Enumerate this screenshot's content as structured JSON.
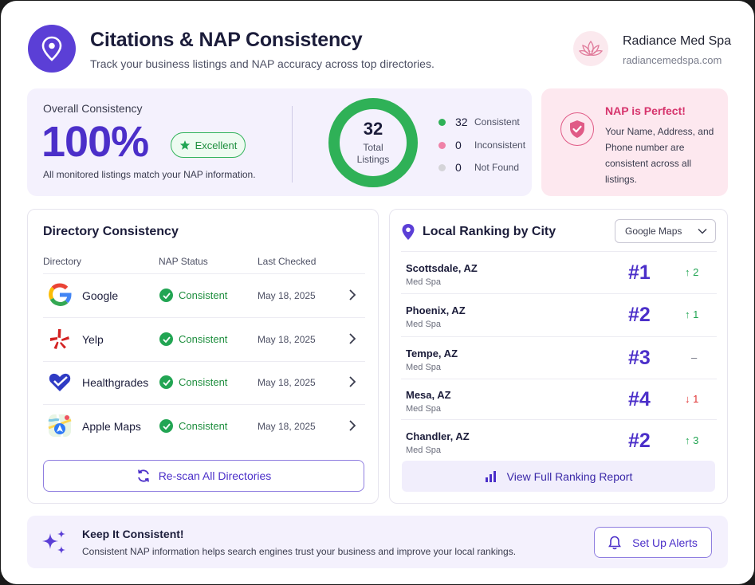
{
  "header": {
    "title": "Citations & NAP Consistency",
    "subtitle": "Track your business listings and NAP accuracy across top directories.",
    "icon": "location-pin-icon"
  },
  "business": {
    "name": "Radiance Med Spa",
    "url": "radiancemedspa.com",
    "logo_icon": "lotus-icon"
  },
  "overall": {
    "label": "Overall Consistency",
    "percent": "100%",
    "badge": "Excellent",
    "note": "All monitored listings match your NAP information.",
    "total": "32",
    "total_label_1": "Total",
    "total_label_2": "Listings",
    "legend": [
      {
        "count": "32",
        "label": "Consistent",
        "color": "#2fb157"
      },
      {
        "count": "0",
        "label": "Inconsistent",
        "color": "#ef82a8"
      },
      {
        "count": "0",
        "label": "Not Found",
        "color": "#d4d4d8"
      }
    ]
  },
  "nap_status": {
    "title": "NAP is Perfect!",
    "text": "Your Name, Address, and Phone number are consistent across all listings.",
    "icon": "shield-check-icon"
  },
  "directory": {
    "title": "Directory Consistency",
    "columns": [
      "Directory",
      "NAP Status",
      "Last Checked"
    ],
    "rows": [
      {
        "name": "Google",
        "status": "Consistent",
        "date": "May 18, 2025",
        "icon": "google-logo-icon"
      },
      {
        "name": "Yelp",
        "status": "Consistent",
        "date": "May 18, 2025",
        "icon": "yelp-logo-icon"
      },
      {
        "name": "Healthgrades",
        "status": "Consistent",
        "date": "May 18, 2025",
        "icon": "healthgrades-logo-icon"
      },
      {
        "name": "Apple Maps",
        "status": "Consistent",
        "date": "May 18, 2025",
        "icon": "apple-maps-logo-icon"
      }
    ],
    "rescan_label": "Re-scan All Directories"
  },
  "ranking": {
    "title": "Local Ranking by City",
    "source": "Google Maps",
    "rows": [
      {
        "city": "Scottsdale, AZ",
        "category": "Med Spa",
        "rank": "#1",
        "change": "↑ 2",
        "trend": "up"
      },
      {
        "city": "Phoenix, AZ",
        "category": "Med Spa",
        "rank": "#2",
        "change": "↑ 1",
        "trend": "up"
      },
      {
        "city": "Tempe, AZ",
        "category": "Med Spa",
        "rank": "#3",
        "change": "–",
        "trend": "flat"
      },
      {
        "city": "Mesa, AZ",
        "category": "Med Spa",
        "rank": "#4",
        "change": "↓ 1",
        "trend": "down"
      },
      {
        "city": "Chandler, AZ",
        "category": "Med Spa",
        "rank": "#2",
        "change": "↑ 3",
        "trend": "up"
      }
    ],
    "view_label": "View Full Ranking Report"
  },
  "tip": {
    "title": "Keep It Consistent!",
    "text": "Consistent NAP information helps search engines trust your business and improve your local rankings.",
    "button": "Set Up Alerts"
  },
  "colors": {
    "accent": "#4b2fc9",
    "success": "#22a553",
    "danger": "#e03131",
    "pink": "#d6336c"
  }
}
